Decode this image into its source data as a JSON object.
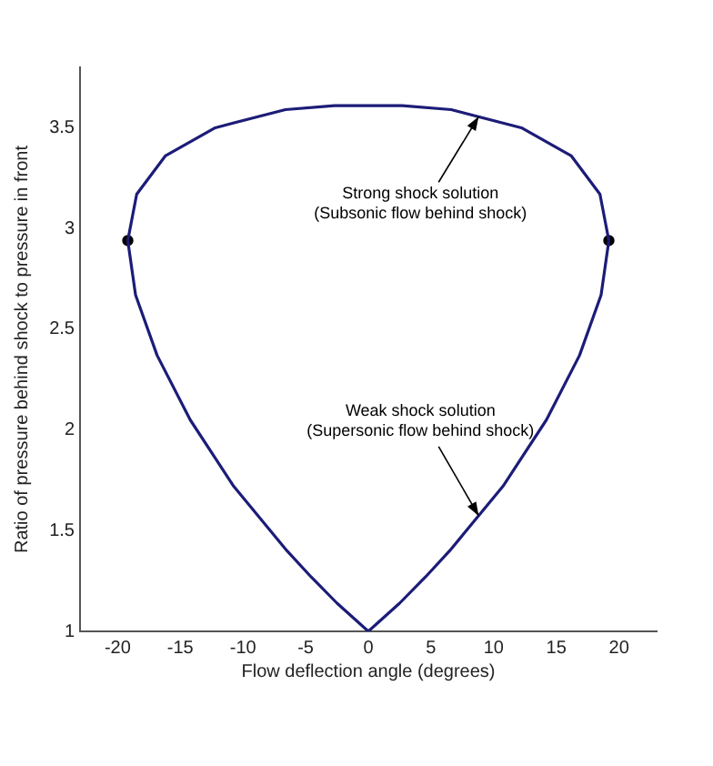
{
  "chart_data": {
    "type": "line",
    "xlabel": "Flow deflection angle (degrees)",
    "ylabel": "Ratio of pressure behind shock to pressure in front",
    "series": [
      {
        "color": "#1c1c78",
        "x": [
          -19.19,
          -18.48,
          -16.2,
          -12.21,
          -6.61,
          -2.7,
          0,
          2.7,
          6.61,
          12.21,
          16.2,
          18.48,
          19.19
        ],
        "values": [
          2.94,
          3.17,
          3.36,
          3.5,
          3.59,
          3.61,
          3.61,
          3.61,
          3.59,
          3.5,
          3.36,
          3.17,
          2.94
        ]
      },
      {
        "color": "#1c1c78",
        "x": [
          -19.19,
          -18.57,
          -16.85,
          -14.21,
          -10.74,
          -6.49,
          -4.56,
          -2.5,
          0,
          2.5,
          4.56,
          6.49,
          10.74,
          14.21,
          16.85,
          18.57,
          19.19
        ],
        "values": [
          2.94,
          2.67,
          2.37,
          2.05,
          1.72,
          1.4,
          1.27,
          1.14,
          1,
          1.14,
          1.27,
          1.4,
          1.72,
          2.05,
          2.37,
          2.67,
          2.94
        ]
      },
      {
        "type": "scatter",
        "color": "#000000",
        "marker": "circle",
        "x": [
          -19.19,
          19.19
        ],
        "values": [
          2.94,
          2.94
        ]
      }
    ],
    "xlim": [
      -23,
      23
    ],
    "xticks": [
      -20,
      -15,
      -10,
      -5,
      0,
      5,
      10,
      15,
      20
    ],
    "ylim": [
      1,
      3.8
    ],
    "yticks": [
      1,
      1.5,
      2,
      2.5,
      3,
      3.5
    ],
    "annotations": [
      {
        "text": "Strong shock solution\n(Subsonic flow behind shock)",
        "x": 8.8,
        "y": 3.555
      },
      {
        "text": "Weak shock solution\n(Supersonic flow behind shock)",
        "x": 8.8,
        "y": 1.574
      }
    ],
    "grid": false,
    "legend": false,
    "marker": "none",
    "line_style": "solid"
  }
}
